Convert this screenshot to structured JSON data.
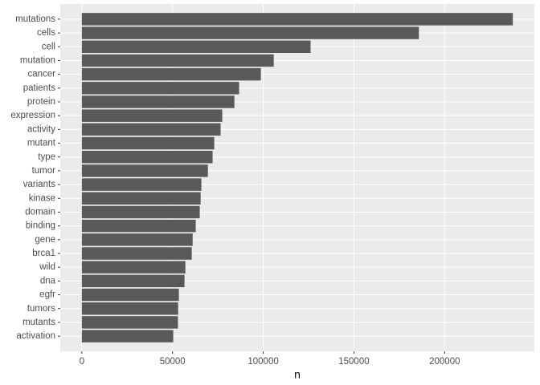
{
  "chart_data": {
    "type": "bar",
    "orientation": "horizontal",
    "x_label": "n",
    "categories": [
      "mutations",
      "cells",
      "cell",
      "mutation",
      "cancer",
      "patients",
      "protein",
      "expression",
      "activity",
      "mutant",
      "type",
      "tumor",
      "variants",
      "kinase",
      "domain",
      "binding",
      "gene",
      "brca1",
      "wild",
      "dna",
      "egfr",
      "tumors",
      "mutants",
      "activation"
    ],
    "values": [
      237600,
      185800,
      126100,
      105800,
      98700,
      86700,
      84100,
      77400,
      76500,
      73000,
      72100,
      69500,
      65900,
      65500,
      65000,
      62800,
      61100,
      60600,
      57100,
      56600,
      53500,
      53100,
      53000,
      50400
    ],
    "color": "#595959",
    "xlim": [
      -11880,
      249480
    ],
    "xticks": [
      0,
      50000,
      100000,
      150000,
      200000
    ],
    "grid": true
  }
}
